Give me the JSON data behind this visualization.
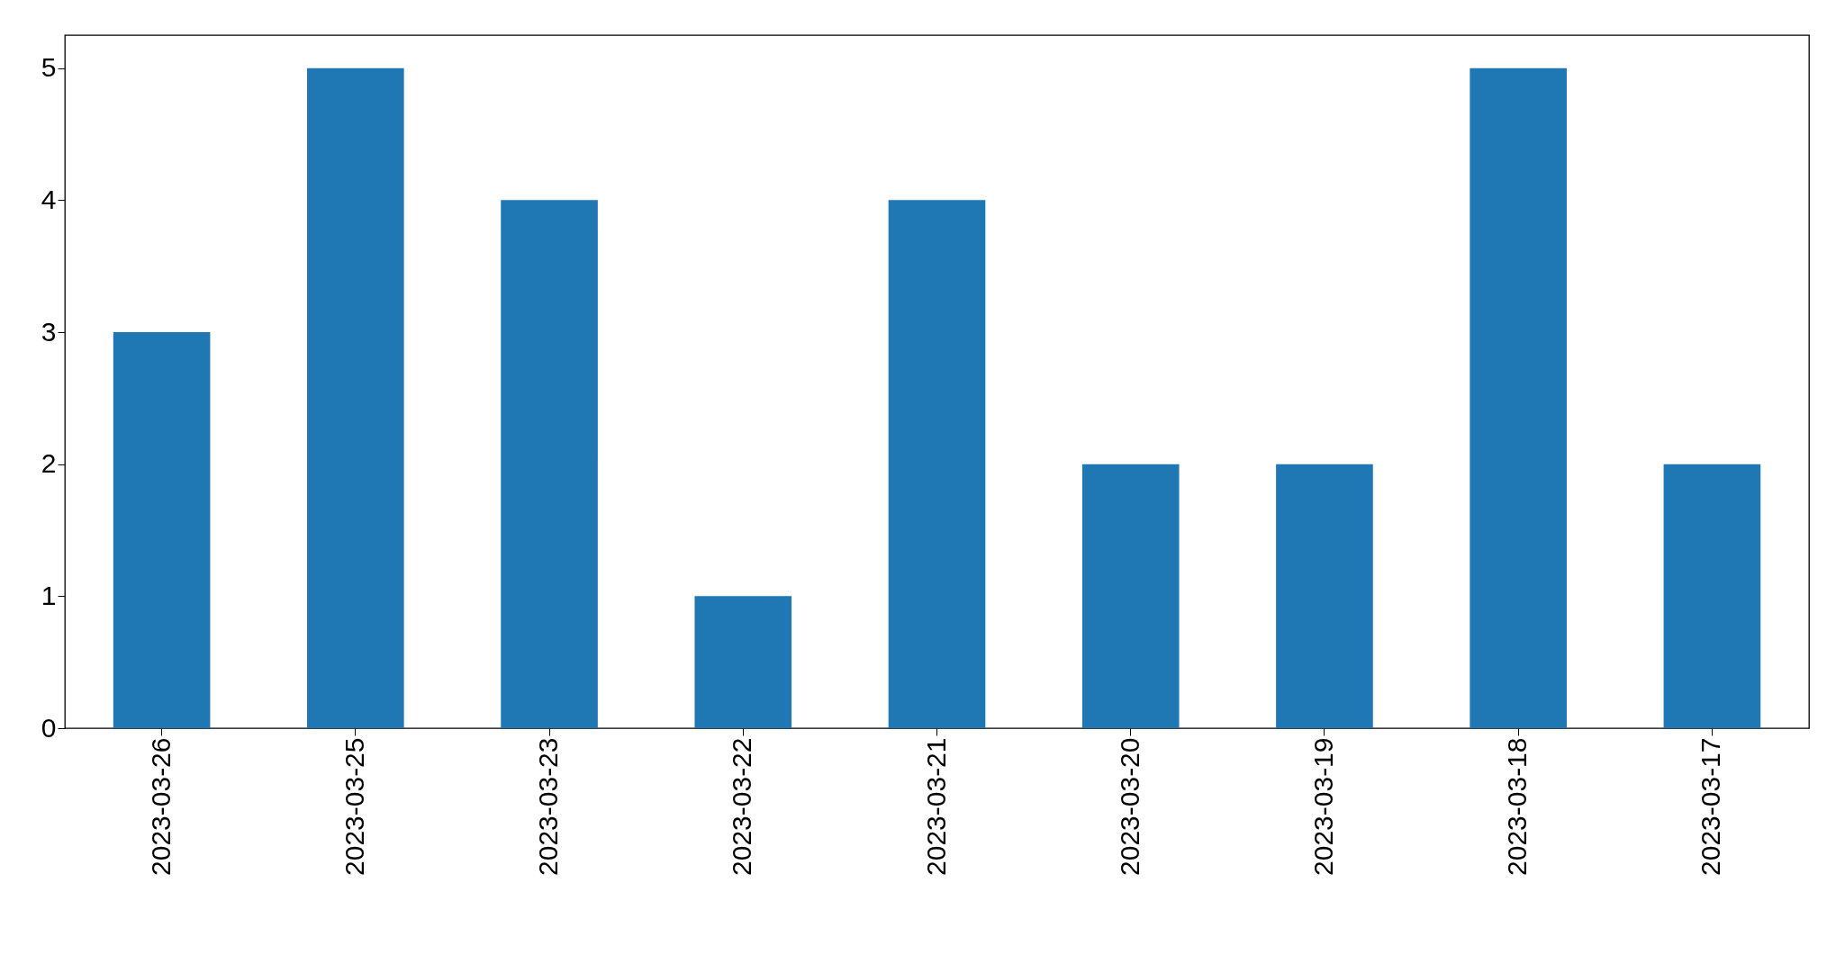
{
  "chart_data": {
    "type": "bar",
    "categories": [
      "2023-03-26",
      "2023-03-25",
      "2023-03-23",
      "2023-03-22",
      "2023-03-21",
      "2023-03-20",
      "2023-03-19",
      "2023-03-18",
      "2023-03-17"
    ],
    "values": [
      3,
      5,
      4,
      1,
      4,
      2,
      2,
      5,
      2
    ],
    "color": "#1f77b4",
    "ylim": [
      0,
      5.25
    ],
    "yticks": [
      0,
      1,
      2,
      3,
      4,
      5
    ],
    "grid": false,
    "legend": false
  }
}
